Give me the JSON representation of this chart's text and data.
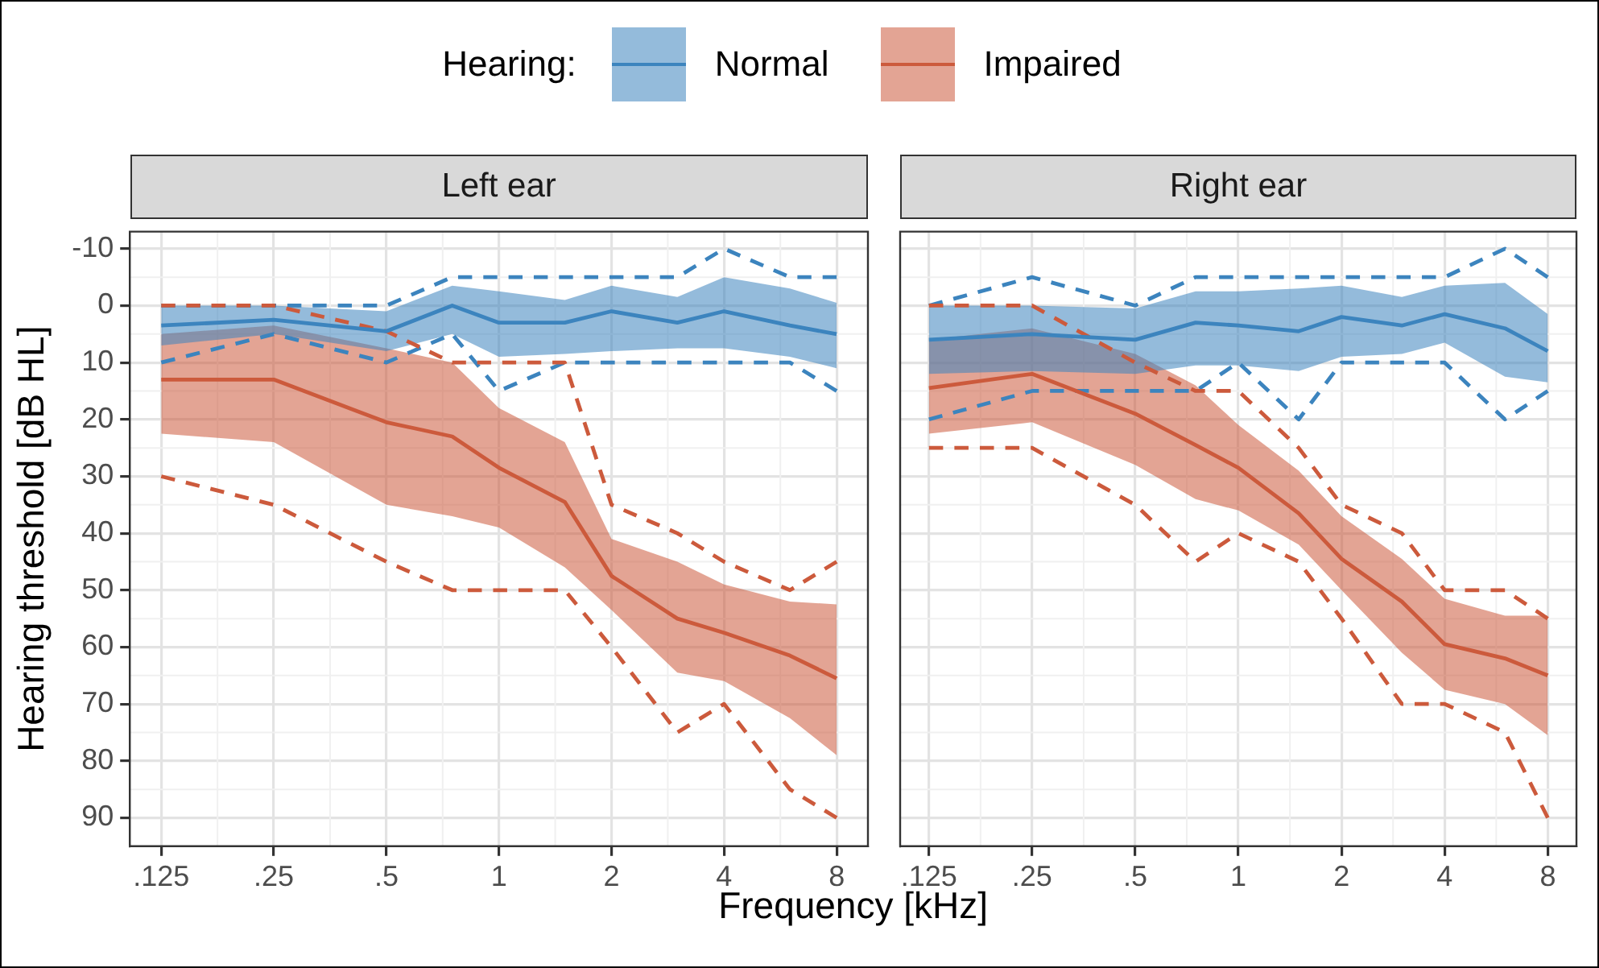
{
  "chart_data": [
    {
      "type": "line",
      "title": "Left ear",
      "xlabel": "Frequency [kHz]",
      "ylabel": "Hearing threshold [dB HL]",
      "legend": "top",
      "legend_title": "Hearing:",
      "log": "x",
      "grid": true,
      "marker": "none",
      "line_style": "solid",
      "x": [
        0.125,
        0.25,
        0.5,
        0.75,
        1,
        1.5,
        2,
        3,
        4,
        6,
        8
      ],
      "xlim": [
        0.103,
        9.7
      ],
      "xticks": [
        {
          "value": 0.125,
          "label": ".125"
        },
        {
          "value": 0.25,
          "label": ".25"
        },
        {
          "value": 0.5,
          "label": ".5"
        },
        1,
        2,
        4,
        8
      ],
      "ylim": [
        95,
        -13
      ],
      "yticks": [
        -10,
        0,
        10,
        20,
        30,
        40,
        50,
        60,
        70,
        80,
        90
      ],
      "series": [
        {
          "name": "Normal",
          "color": "#3c84be",
          "values": [
            3.5,
            2.5,
            4.5,
            0,
            3,
            3,
            1,
            3,
            1,
            3.5,
            5
          ],
          "lower": [
            0,
            0,
            1,
            -3.5,
            -2.5,
            -1,
            -3.5,
            -1.5,
            -5,
            -3,
            -0.5
          ],
          "upper": [
            7,
            5,
            8,
            5,
            9,
            8.5,
            8,
            7.5,
            7.5,
            9,
            11
          ]
        },
        {
          "name": "Impaired",
          "color": "#cc5a3c",
          "values": [
            13,
            13,
            20.5,
            23,
            28.5,
            34.5,
            47.5,
            55,
            57.5,
            61.5,
            65.5
          ],
          "lower": [
            5,
            3.5,
            7.5,
            10,
            18,
            24,
            41,
            45,
            49,
            52,
            52.5
          ],
          "upper": [
            22.5,
            24,
            35,
            37,
            39,
            46,
            53.5,
            64.5,
            66,
            72.5,
            79
          ]
        },
        {
          "color": "#3c84be",
          "line_style": "dashed",
          "values": [
            0,
            0,
            0,
            -5,
            -5,
            -5,
            -5,
            -5,
            -10,
            -5,
            -5
          ]
        },
        {
          "color": "#3c84be",
          "line_style": "dashed",
          "values": [
            10,
            5,
            10,
            5,
            15,
            10,
            10,
            10,
            10,
            10,
            15
          ]
        },
        {
          "color": "#cc5a3c",
          "line_style": "dashed",
          "values": [
            0,
            0,
            4.5,
            10,
            10,
            10,
            35,
            40,
            45,
            50,
            45
          ]
        },
        {
          "color": "#cc5a3c",
          "line_style": "dashed",
          "values": [
            30,
            35,
            45,
            50,
            50,
            50,
            60,
            75,
            70,
            85,
            90
          ]
        }
      ]
    },
    {
      "type": "line",
      "title": "Right ear",
      "log": "x",
      "grid": true,
      "marker": "none",
      "line_style": "solid",
      "tick_labels": "x",
      "x": [
        0.125,
        0.25,
        0.5,
        0.75,
        1,
        1.5,
        2,
        3,
        4,
        6,
        8
      ],
      "xlim": [
        0.103,
        9.7
      ],
      "xticks": [
        {
          "value": 0.125,
          "label": ".125"
        },
        {
          "value": 0.25,
          "label": ".25"
        },
        {
          "value": 0.5,
          "label": ".5"
        },
        1,
        2,
        4,
        8
      ],
      "ylim": [
        95,
        -13
      ],
      "yticks": [
        -10,
        0,
        10,
        20,
        30,
        40,
        50,
        60,
        70,
        80,
        90
      ],
      "series": [
        {
          "color": "#3c84be",
          "values": [
            6,
            5,
            6,
            3,
            3.5,
            4.5,
            2,
            3.5,
            1.5,
            4,
            8
          ],
          "lower": [
            0,
            0,
            0.5,
            -2.5,
            -2.5,
            -3,
            -3.5,
            -1.5,
            -3.5,
            -4,
            1.5
          ],
          "upper": [
            12,
            11.5,
            12,
            10.5,
            10.5,
            11.5,
            9,
            8.5,
            6.5,
            12.5,
            13.5
          ]
        },
        {
          "color": "#cc5a3c",
          "values": [
            14.5,
            12,
            19,
            24.5,
            28.5,
            36.5,
            44.5,
            52,
            59.5,
            62,
            65
          ],
          "lower": [
            6,
            4,
            8.5,
            14,
            21,
            29,
            37,
            44.5,
            51.5,
            54.5,
            54.5
          ],
          "upper": [
            22.5,
            20.5,
            28,
            34,
            36,
            42,
            50,
            61,
            67.5,
            70,
            75.5
          ]
        },
        {
          "color": "#3c84be",
          "line_style": "dashed",
          "values": [
            0,
            -5,
            0,
            -5,
            -5,
            -5,
            -5,
            -5,
            -5,
            -10,
            -5
          ]
        },
        {
          "color": "#3c84be",
          "line_style": "dashed",
          "values": [
            20,
            15,
            15,
            15,
            10,
            20,
            10,
            10,
            10,
            20,
            15
          ]
        },
        {
          "color": "#cc5a3c",
          "line_style": "dashed",
          "values": [
            0,
            0,
            10,
            15,
            15,
            25,
            35,
            40,
            50,
            50,
            55
          ]
        },
        {
          "color": "#cc5a3c",
          "line_style": "dashed",
          "values": [
            25,
            25,
            35,
            45,
            40,
            45,
            55,
            70,
            70,
            75,
            90
          ]
        }
      ]
    }
  ]
}
